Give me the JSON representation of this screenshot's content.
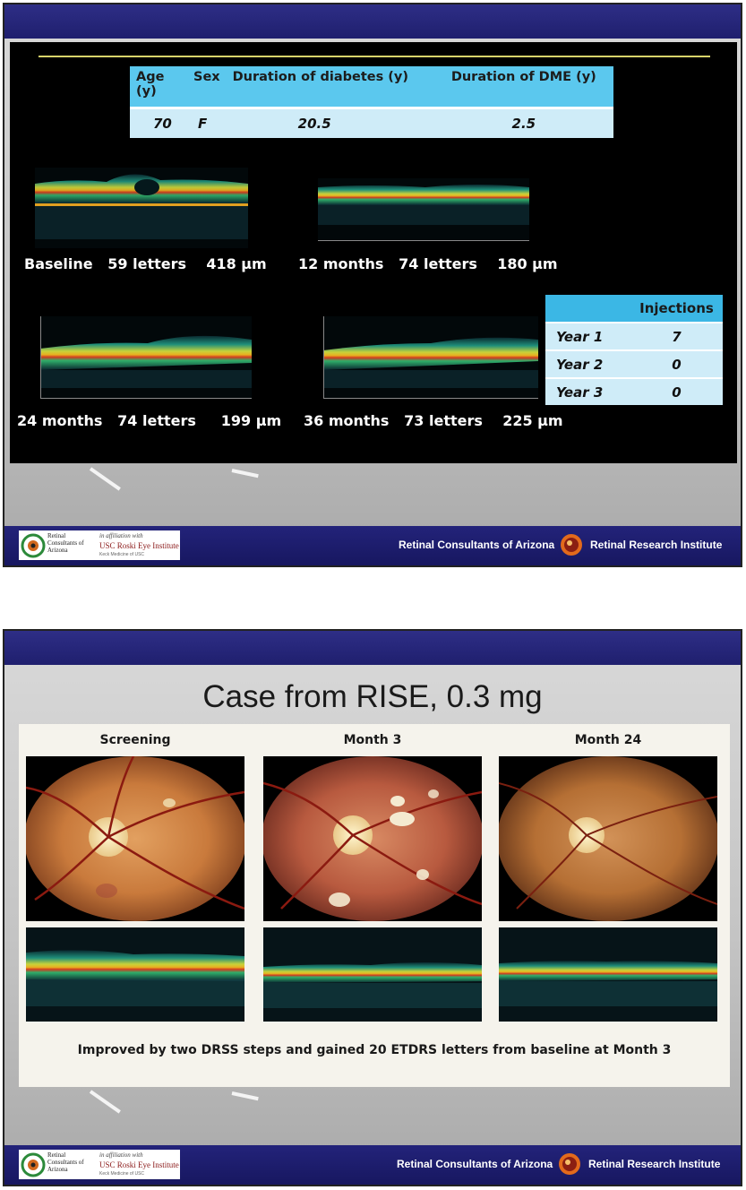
{
  "slide1": {
    "patient_table": {
      "headers": [
        "Age (y)",
        "Sex",
        "Duration of diabetes (y)",
        "Duration of DME (y)"
      ],
      "values": [
        "70",
        "F",
        "20.5",
        "2.5"
      ]
    },
    "oct_scans": [
      {
        "visit": "Baseline",
        "letters": "59 letters",
        "thickness": "418 µm"
      },
      {
        "visit": "12 months",
        "letters": "74 letters",
        "thickness": "180 µm"
      },
      {
        "visit": "24 months",
        "letters": "74 letters",
        "thickness": "199 µm"
      },
      {
        "visit": "36 months",
        "letters": "73 letters",
        "thickness": "225 µm"
      }
    ],
    "injections_table": {
      "header": "Injections",
      "rows": [
        {
          "year": "Year 1",
          "count": "7"
        },
        {
          "year": "Year 2",
          "count": "0"
        },
        {
          "year": "Year 3",
          "count": "0"
        }
      ]
    }
  },
  "slide2": {
    "title": "Case from RISE, 0.3 mg",
    "columns": [
      "Screening",
      "Month 3",
      "Month 24"
    ],
    "caption": "Improved by two DRSS steps and gained 20 ETDRS letters from baseline at Month 3"
  },
  "footer": {
    "logo_text": "Retinal Consultants of Arizona",
    "affiliation": "in affiliation with",
    "usc": "USC Roski Eye Institute",
    "usc_sub": "Keck Medicine of USC",
    "left_text": "Retinal Consultants of Arizona",
    "right_text": "Retinal Research Institute"
  },
  "colors": {
    "banner": "#23237a",
    "table_header": "#5bc8ee",
    "table_cell": "#cfecf8",
    "accent_line": "#d8d36a"
  }
}
